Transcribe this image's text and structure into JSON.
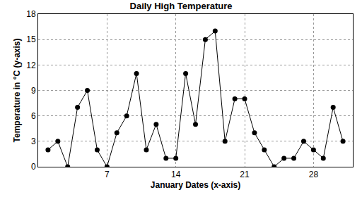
{
  "chart_data": {
    "type": "line",
    "title": "Daily High Temperature",
    "x_label": "January Dates (x-axis)",
    "y_label": "Temperature in °C (y-axis)",
    "x": [
      1,
      2,
      3,
      4,
      5,
      6,
      7,
      8,
      9,
      10,
      11,
      12,
      13,
      14,
      15,
      16,
      17,
      18,
      19,
      20,
      21,
      22,
      23,
      24,
      25,
      26,
      27,
      28,
      29,
      30,
      31
    ],
    "values": [
      2,
      3,
      0,
      7,
      9,
      2,
      0,
      4,
      6,
      11,
      2,
      5,
      1,
      1,
      11,
      5,
      15,
      16,
      3,
      8,
      8,
      4,
      2,
      0,
      1,
      1,
      3,
      2,
      1,
      7,
      3
    ],
    "color": "#000000",
    "marker": "circle",
    "line_style": "solid",
    "xlim": [
      0,
      32
    ],
    "xticks": [
      7,
      14,
      21,
      28
    ],
    "ylim": [
      0,
      18
    ],
    "yticks": [
      0,
      3,
      6,
      9,
      12,
      15,
      18
    ],
    "grid": true
  }
}
